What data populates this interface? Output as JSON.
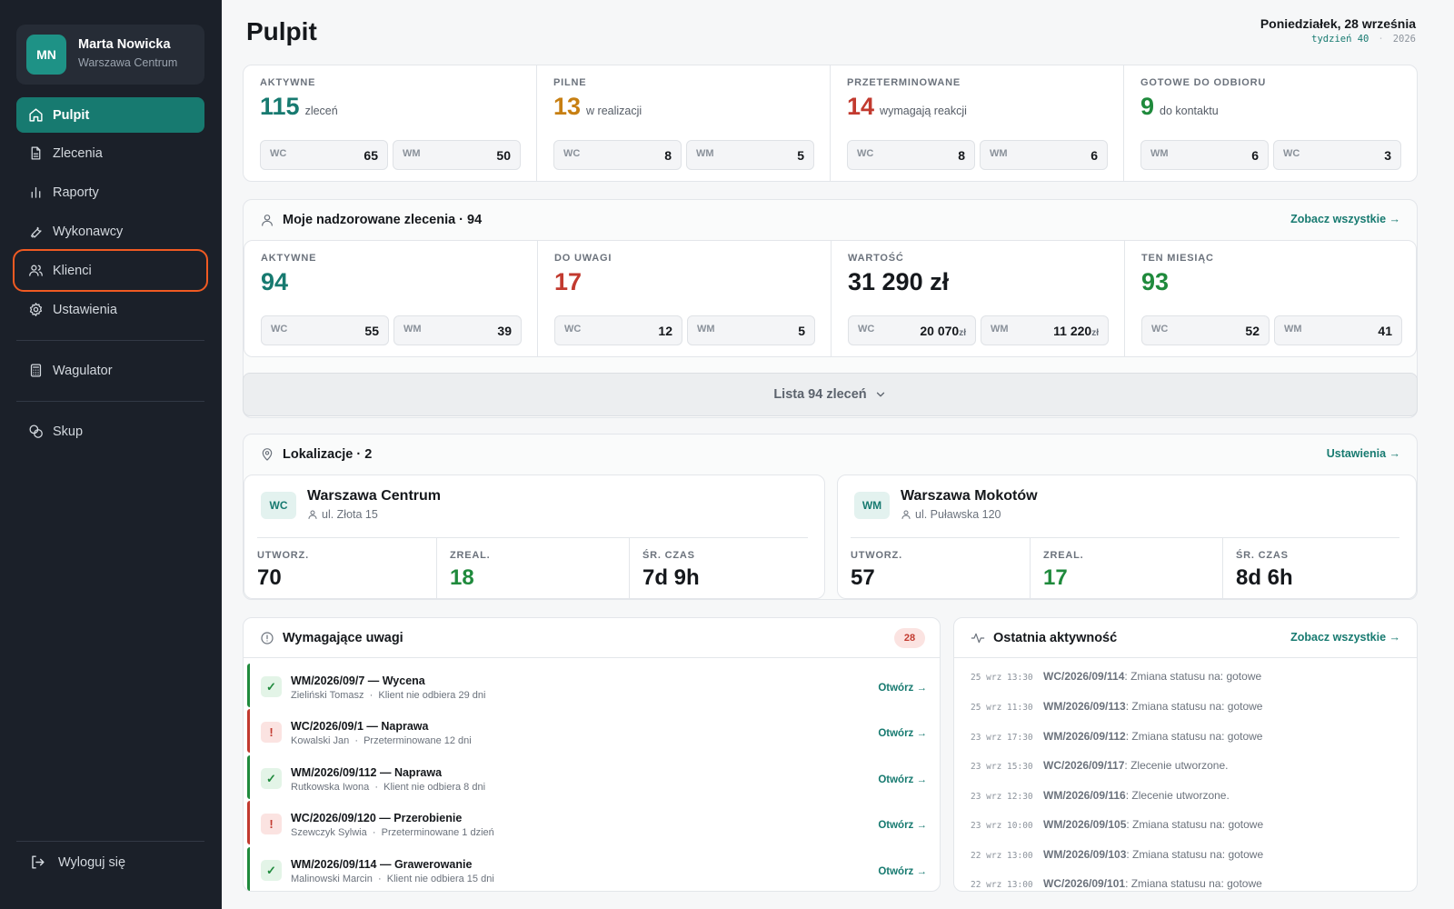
{
  "user": {
    "initials": "MN",
    "name": "Marta Nowicka",
    "location": "Warszawa Centrum"
  },
  "nav": {
    "items": [
      {
        "label": "Pulpit",
        "icon": "home-icon"
      },
      {
        "label": "Zlecenia",
        "icon": "document-icon"
      },
      {
        "label": "Raporty",
        "icon": "bar-chart-icon"
      },
      {
        "label": "Wykonawcy",
        "icon": "wrench-icon"
      },
      {
        "label": "Klienci",
        "icon": "users-icon"
      },
      {
        "label": "Ustawienia",
        "icon": "gear-icon"
      },
      {
        "label": "Wagulator",
        "icon": "calculator-icon"
      },
      {
        "label": "Skup",
        "icon": "coins-icon"
      }
    ],
    "active": "Pulpit",
    "highlighted": "Klienci",
    "logout": "Wyloguj się"
  },
  "header": {
    "title": "Pulpit",
    "date": "Poniedziałek, 28 września",
    "week": "tydzień 40",
    "year": "2026"
  },
  "summary": [
    {
      "label": "AKTYWNE",
      "value": "115",
      "unit": "zleceń",
      "color": "#177a70",
      "pills": [
        {
          "k": "WC",
          "v": "65"
        },
        {
          "k": "WM",
          "v": "50"
        }
      ]
    },
    {
      "label": "PILNE",
      "value": "13",
      "unit": "w realizacji",
      "color": "#c77f12",
      "pills": [
        {
          "k": "WC",
          "v": "8"
        },
        {
          "k": "WM",
          "v": "5"
        }
      ]
    },
    {
      "label": "PRZETERMINOWANE",
      "value": "14",
      "unit": "wymagają reakcji",
      "color": "#c23a2f",
      "pills": [
        {
          "k": "WC",
          "v": "8"
        },
        {
          "k": "WM",
          "v": "6"
        }
      ]
    },
    {
      "label": "GOTOWE DO ODBIORU",
      "value": "9",
      "unit": "do kontaktu",
      "color": "#1f8a3c",
      "pills": [
        {
          "k": "WM",
          "v": "6"
        },
        {
          "k": "WC",
          "v": "3"
        }
      ]
    }
  ],
  "supervised": {
    "title": "Moje nadzorowane zlecenia · 94",
    "link": "Zobacz wszystkie →",
    "stats": [
      {
        "label": "AKTYWNE",
        "value": "94",
        "color": "#177a70",
        "pills": [
          {
            "k": "WC",
            "v": "55",
            "s": ""
          },
          {
            "k": "WM",
            "v": "39",
            "s": ""
          }
        ]
      },
      {
        "label": "DO UWAGI",
        "value": "17",
        "color": "#c23a2f",
        "pills": [
          {
            "k": "WC",
            "v": "12",
            "s": ""
          },
          {
            "k": "WM",
            "v": "5",
            "s": ""
          }
        ]
      },
      {
        "label": "WARTOŚĆ",
        "value": "31 290 zł",
        "color": "#15181c",
        "pills": [
          {
            "k": "WC",
            "v": "20 070",
            "s": "zł"
          },
          {
            "k": "WM",
            "v": "11 220",
            "s": "zł"
          }
        ]
      },
      {
        "label": "TEN MIESIĄC",
        "value": "93",
        "color": "#1f8a3c",
        "pills": [
          {
            "k": "WC",
            "v": "52",
            "s": ""
          },
          {
            "k": "WM",
            "v": "41",
            "s": ""
          }
        ]
      }
    ],
    "list_button": "Lista 94 zleceń"
  },
  "locations": {
    "title": "Lokalizacje · 2",
    "link": "Ustawienia →",
    "items": [
      {
        "code": "WC",
        "name": "Warszawa Centrum",
        "address": "ul. Złota 15",
        "created_label": "UTWORZ.",
        "created": "70",
        "done_label": "ZREAL.",
        "done": "18",
        "avg_label": "ŚR. CZAS",
        "avg": "7d 9h"
      },
      {
        "code": "WM",
        "name": "Warszawa Mokotów",
        "address": "ul. Puławska 120",
        "created_label": "UTWORZ.",
        "created": "57",
        "done_label": "ZREAL.",
        "done": "17",
        "avg_label": "ŚR. CZAS",
        "avg": "8d 6h"
      }
    ]
  },
  "attention": {
    "title": "Wymagające uwagi",
    "count": "28",
    "open_label": "Otwórz →",
    "items": [
      {
        "status": "ok",
        "mark": "✓",
        "title": "WM/2026/09/7 — Wycena",
        "client": "Zieliński Tomasz",
        "note": "Klient nie odbiera 29 dni"
      },
      {
        "status": "err",
        "mark": "!",
        "title": "WC/2026/09/1 — Naprawa",
        "client": "Kowalski Jan",
        "note": "Przeterminowane 12 dni"
      },
      {
        "status": "ok",
        "mark": "✓",
        "title": "WM/2026/09/112 — Naprawa",
        "client": "Rutkowska Iwona",
        "note": "Klient nie odbiera 8 dni"
      },
      {
        "status": "err",
        "mark": "!",
        "title": "WC/2026/09/120 — Przerobienie",
        "client": "Szewczyk Sylwia",
        "note": "Przeterminowane 1 dzień"
      },
      {
        "status": "ok",
        "mark": "✓",
        "title": "WM/2026/09/114 — Grawerowanie",
        "client": "Malinowski Marcin",
        "note": "Klient nie odbiera 15 dni"
      }
    ]
  },
  "activity": {
    "title": "Ostatnia aktywność",
    "link": "Zobacz wszystkie →",
    "items": [
      {
        "time": "25 wrz 13:30",
        "id": "WC/2026/09/114",
        "text": ": Zmiana statusu na: gotowe"
      },
      {
        "time": "25 wrz 11:30",
        "id": "WM/2026/09/113",
        "text": ": Zmiana statusu na: gotowe"
      },
      {
        "time": "23 wrz 17:30",
        "id": "WM/2026/09/112",
        "text": ": Zmiana statusu na: gotowe"
      },
      {
        "time": "23 wrz 15:30",
        "id": "WC/2026/09/117",
        "text": ": Zlecenie utworzone."
      },
      {
        "time": "23 wrz 12:30",
        "id": "WM/2026/09/116",
        "text": ": Zlecenie utworzone."
      },
      {
        "time": "23 wrz 10:00",
        "id": "WM/2026/09/105",
        "text": ": Zmiana statusu na: gotowe"
      },
      {
        "time": "22 wrz 13:00",
        "id": "WM/2026/09/103",
        "text": ": Zmiana statusu na: gotowe"
      },
      {
        "time": "22 wrz 13:00",
        "id": "WC/2026/09/101",
        "text": ": Zmiana statusu na: gotowe"
      }
    ]
  }
}
